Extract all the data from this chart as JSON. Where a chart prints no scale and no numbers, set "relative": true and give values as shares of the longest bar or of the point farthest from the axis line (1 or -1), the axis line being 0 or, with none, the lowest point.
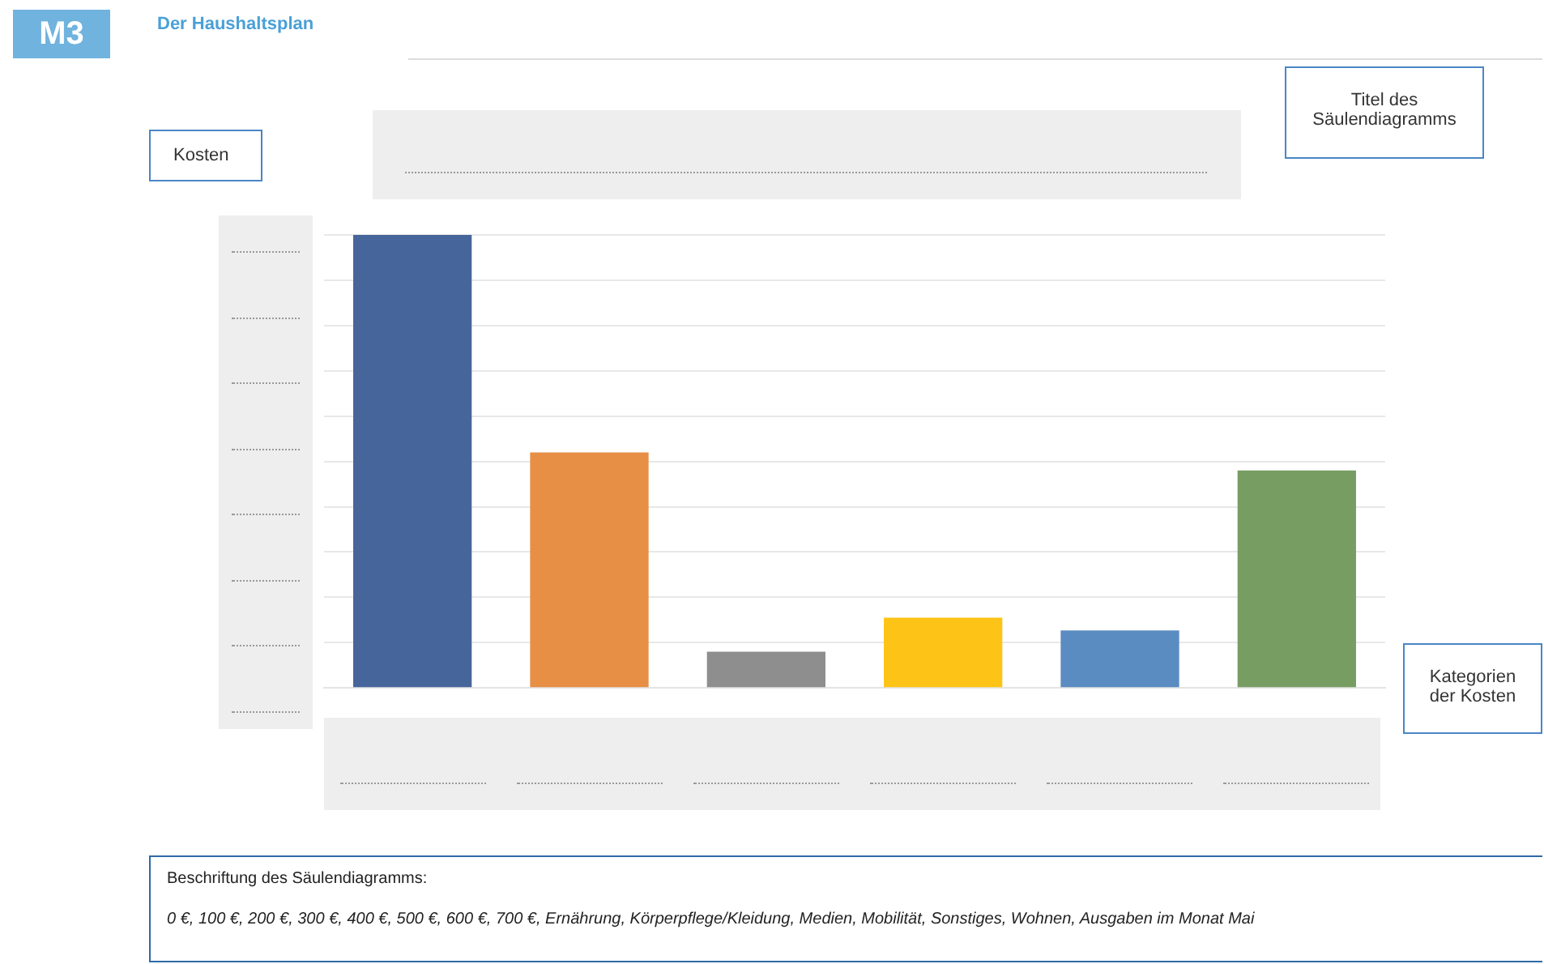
{
  "chart_data": {
    "type": "bar",
    "relative": true,
    "categories": [
      null,
      null,
      null,
      null,
      null,
      null
    ],
    "values": [
      1,
      0.52,
      0.08,
      0.155,
      0.127,
      0.48
    ],
    "colors": [
      "#46659a",
      "#e68f45",
      "#8e8e8e",
      "#fdc316",
      "#5a8cc1",
      "#789d63"
    ],
    "grid": "y",
    "legend": false,
    "annotations": [
      "M3",
      "Der Haushaltsplan",
      "Kosten",
      "Titel des Säulendiagramms",
      "Kategorien der Kosten",
      "Beschriftung des Säulendiagramms:",
      "0 €, 100 €, 200 €, 300 €, 400 €, 500 €, 600 €, 700 €, Ernährung, Körperpflege/Kleidung, Medien, Mobilität, Sonstiges, Wohnen, Ausgaben im Monat Mai"
    ]
  }
}
